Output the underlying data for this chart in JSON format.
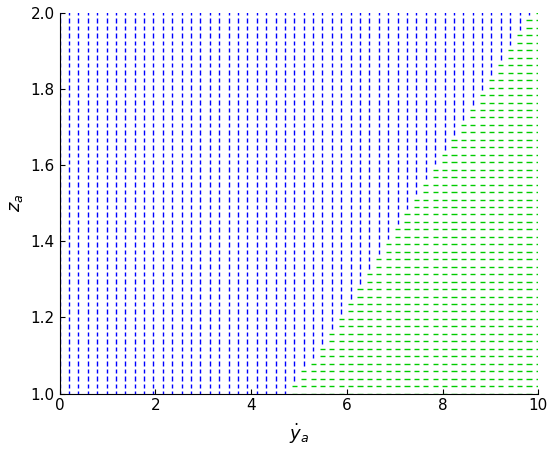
{
  "x_min": 0,
  "x_max": 10,
  "y_min": 1.0,
  "y_max": 2.0,
  "xlabel": "$\\dot{y}_a$",
  "ylabel": "$z_a$",
  "blue_color": "#0000FF",
  "green_color": "#00CC00",
  "figsize": [
    5.55,
    4.53
  ],
  "dpi": 100,
  "grid_nx": 52,
  "grid_ny": 52,
  "stability_boundary_za": [
    1.0,
    1.02,
    1.04,
    1.06,
    1.08,
    1.1,
    1.15,
    1.2,
    1.25,
    1.3,
    1.35,
    1.4,
    1.45,
    1.5,
    1.55,
    1.6,
    1.65,
    1.7,
    1.75,
    1.8,
    1.85,
    1.9,
    1.95,
    2.0
  ],
  "stability_boundary_ydot": [
    4.8,
    4.9,
    5.0,
    5.1,
    5.2,
    5.35,
    5.6,
    5.85,
    6.1,
    6.35,
    6.6,
    6.85,
    7.1,
    7.35,
    7.6,
    7.85,
    8.1,
    8.35,
    8.6,
    8.85,
    9.1,
    9.35,
    9.6,
    9.9
  ]
}
